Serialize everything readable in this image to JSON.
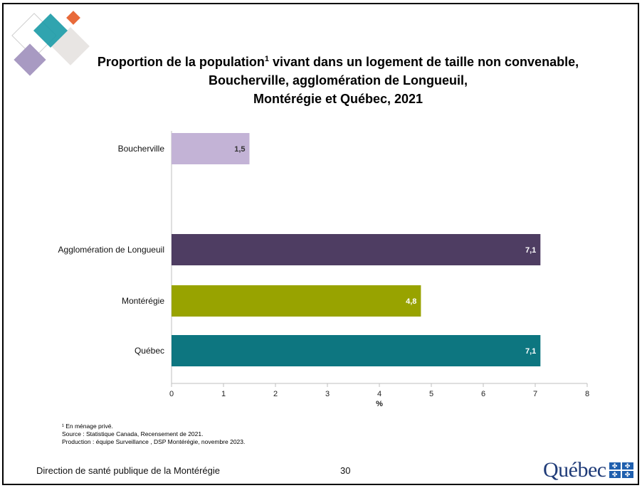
{
  "title": {
    "part1": "Proportion de la population",
    "sup": "1",
    "part2": " vivant dans un logement de taille non convenable,",
    "line2": "Boucherville, agglomération de Longueuil,",
    "line3": "Montérégie et Québec, 2021"
  },
  "chart_data": {
    "type": "bar",
    "orientation": "horizontal",
    "categories": [
      "Boucherville",
      "Agglomération de Longueuil",
      "Montérégie",
      "Québec"
    ],
    "values": [
      1.5,
      7.1,
      4.8,
      7.1
    ],
    "value_labels": [
      "1,5",
      "7,1",
      "4,8",
      "7,1"
    ],
    "colors": [
      "#c3b3d6",
      "#4e3d62",
      "#98a300",
      "#0d7680"
    ],
    "xlabel": "%",
    "xlim": [
      0,
      8
    ],
    "xticks": [
      "0",
      "1",
      "2",
      "3",
      "4",
      "5",
      "6",
      "7",
      "8"
    ],
    "grid": false
  },
  "footnotes": {
    "note1": "¹ En ménage privé.",
    "source": "Source : Statistique Canada, Recensement de 2021.",
    "production": "Production : équipe Surveillance , DSP Montérégie, novembre 2023."
  },
  "footer": {
    "organization": "Direction de santé publique de la Montérégie",
    "page": "30",
    "logo_text": "Québec"
  }
}
